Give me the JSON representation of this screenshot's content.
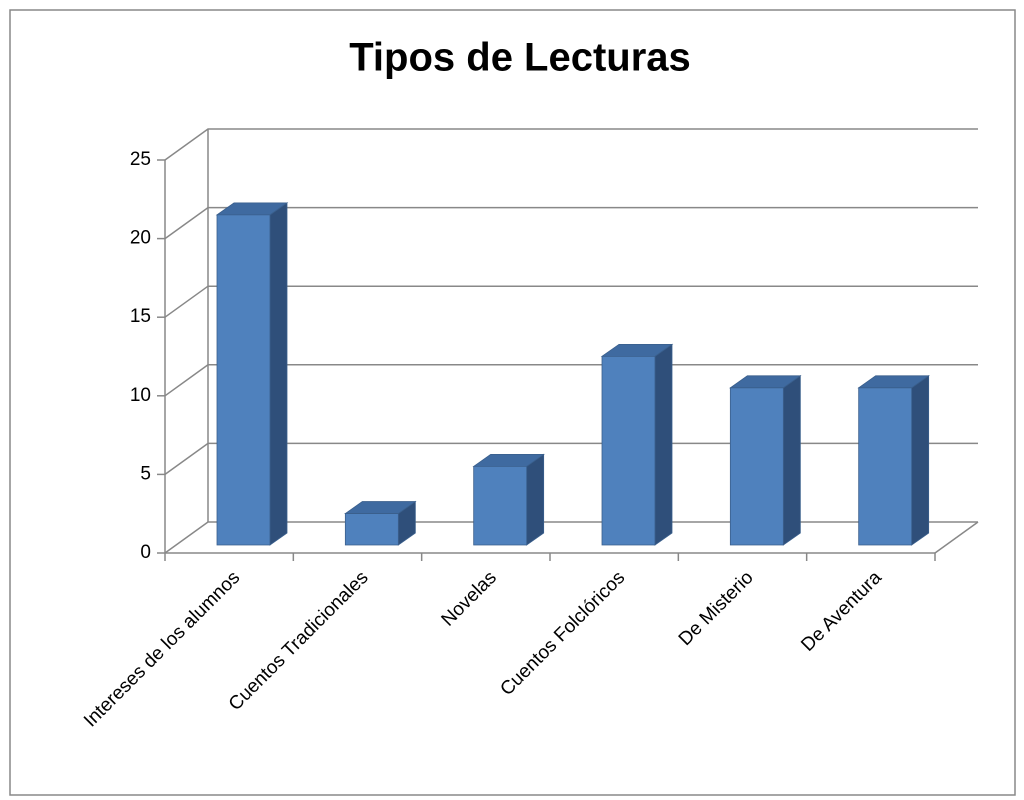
{
  "chart_data": {
    "type": "bar",
    "title": "Tipos de Lecturas",
    "categories": [
      "Intereses de los alumnos",
      "Cuentos Tradicionales",
      "Novelas",
      "Cuentos Folclóricos",
      "De Misterio",
      "De Aventura"
    ],
    "values": [
      21,
      2,
      5,
      12,
      10,
      10
    ],
    "color": "#4f81bd",
    "ylim": [
      0,
      25
    ],
    "yticks": [
      0,
      5,
      10,
      15,
      20,
      25
    ],
    "grid": true
  }
}
